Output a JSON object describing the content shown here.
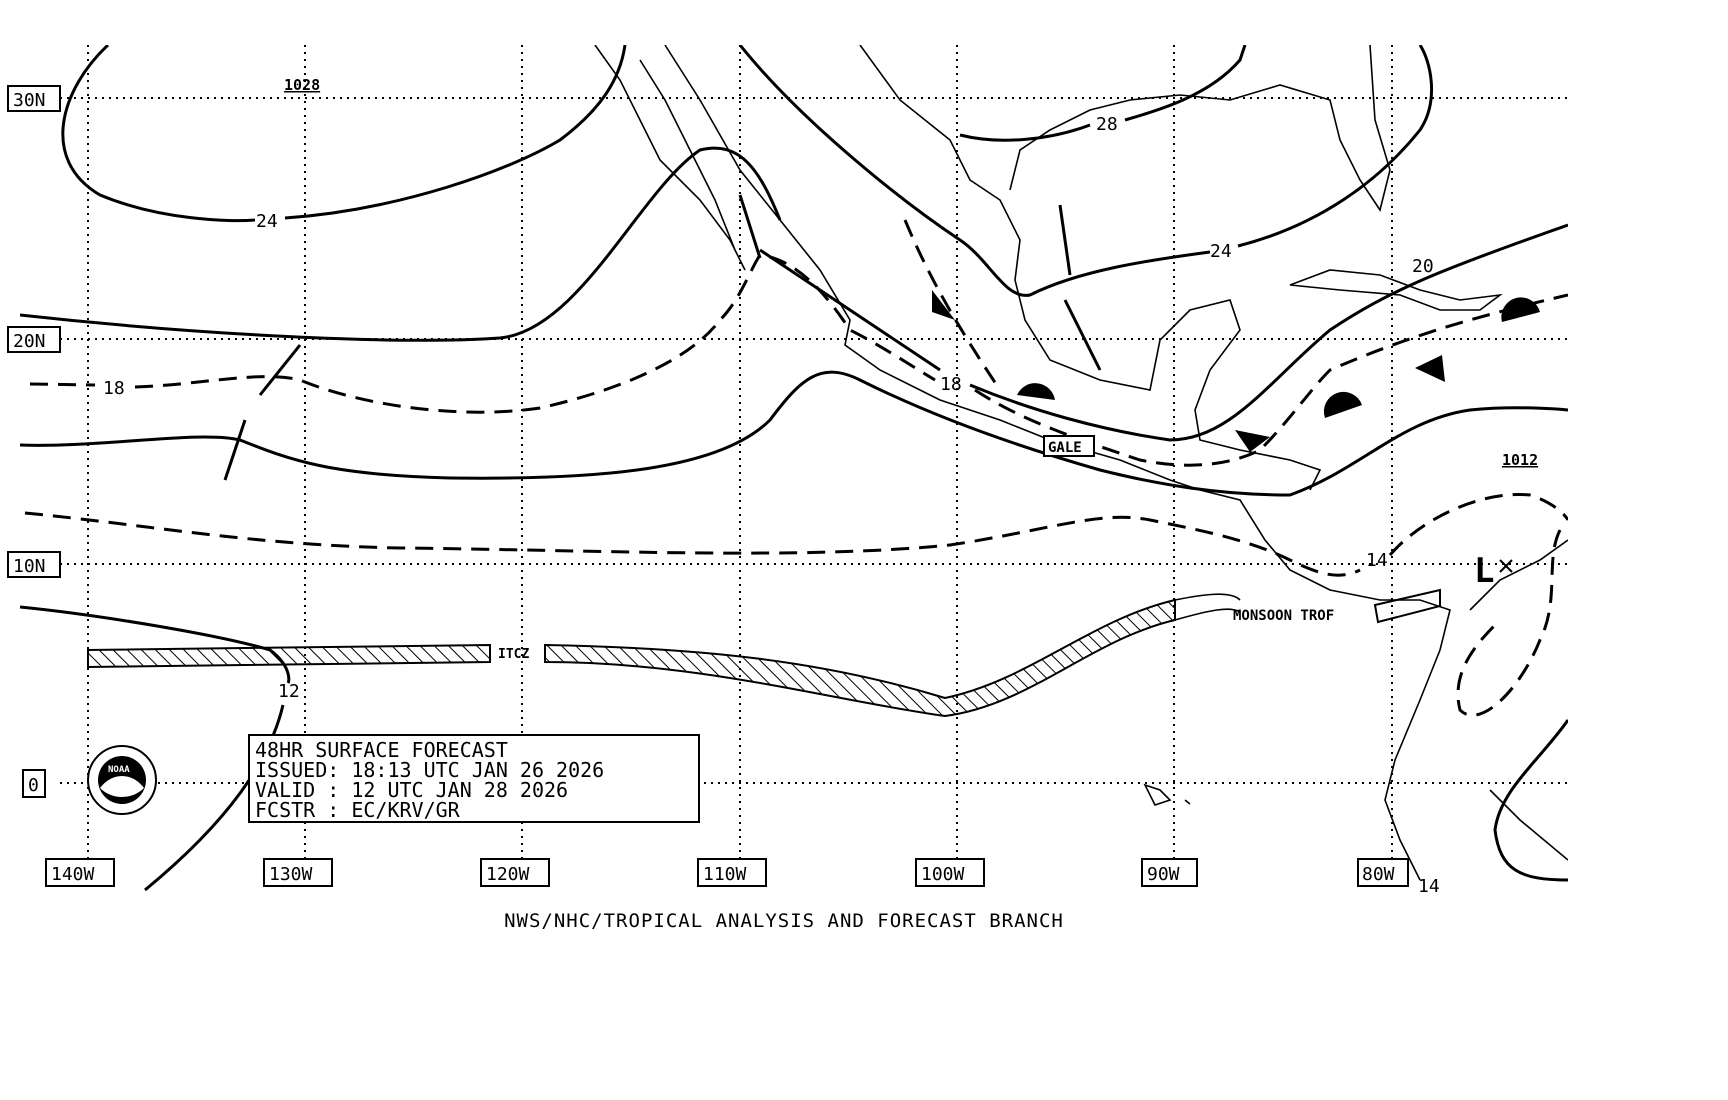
{
  "chart": {
    "latitude_labels": [
      "30N",
      "20N",
      "10N",
      "0"
    ],
    "longitude_labels": [
      "140W",
      "130W",
      "120W",
      "110W",
      "100W",
      "90W",
      "80W"
    ],
    "pressure_centers": {
      "high": "1028",
      "east": "1012"
    },
    "low_symbol": "L",
    "isobar_labels": [
      "24",
      "18",
      "12",
      "28",
      "24",
      "20",
      "18",
      "14",
      "14"
    ],
    "features": {
      "gale": "GALE",
      "itcz": "ITCZ",
      "monsoon": "MONSOON TROF"
    },
    "logo_text": "NOAA"
  },
  "info_box": {
    "line1": "48HR SURFACE FORECAST",
    "line2": "ISSUED: 18:13 UTC JAN 26 2026",
    "line3": "VALID : 12 UTC JAN 28 2026",
    "line4": "FCSTR : EC/KRV/GR"
  },
  "footer": "NWS/NHC/TROPICAL ANALYSIS AND FORECAST BRANCH",
  "colors": {
    "ink": "#000000",
    "background": "#ffffff"
  }
}
